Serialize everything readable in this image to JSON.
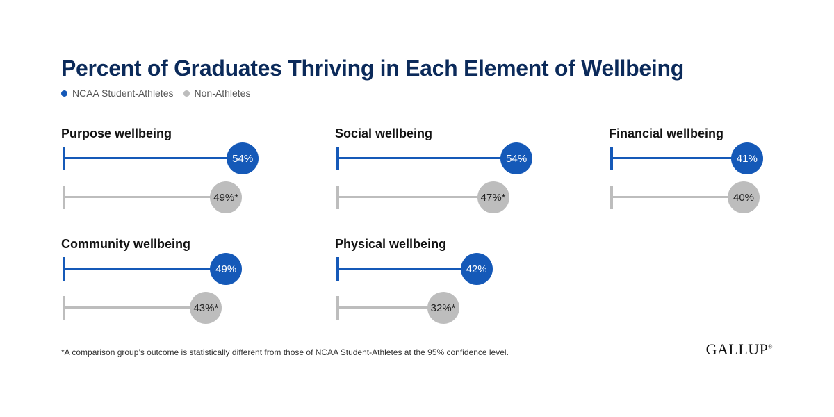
{
  "title": "Percent of Graduates Thriving in Each Element of Wellbeing",
  "legend": [
    {
      "label": "NCAA Student-Athletes",
      "color": "#1559b8"
    },
    {
      "label": "Non-Athletes",
      "color": "#bdbdbd"
    }
  ],
  "chart_data": {
    "type": "bar",
    "categories": [
      "Purpose wellbeing",
      "Social wellbeing",
      "Financial wellbeing",
      "Community wellbeing",
      "Physical wellbeing"
    ],
    "series": [
      {
        "name": "NCAA Student-Athletes",
        "values": [
          54,
          54,
          41,
          49,
          42
        ],
        "labels": [
          "54%",
          "54%",
          "41%",
          "49%",
          "42%"
        ],
        "color": "#1559b8"
      },
      {
        "name": "Non-Athletes",
        "values": [
          49,
          47,
          40,
          43,
          32
        ],
        "labels": [
          "49%*",
          "47%*",
          "40%",
          "43%*",
          "32%*"
        ],
        "color": "#bdbdbd"
      }
    ],
    "ylim": [
      0,
      60
    ]
  },
  "footnote": "*A comparison group’s outcome is statistically different from those of NCAA Student-Athletes at the 95% confidence level.",
  "logo": "GALLUP"
}
